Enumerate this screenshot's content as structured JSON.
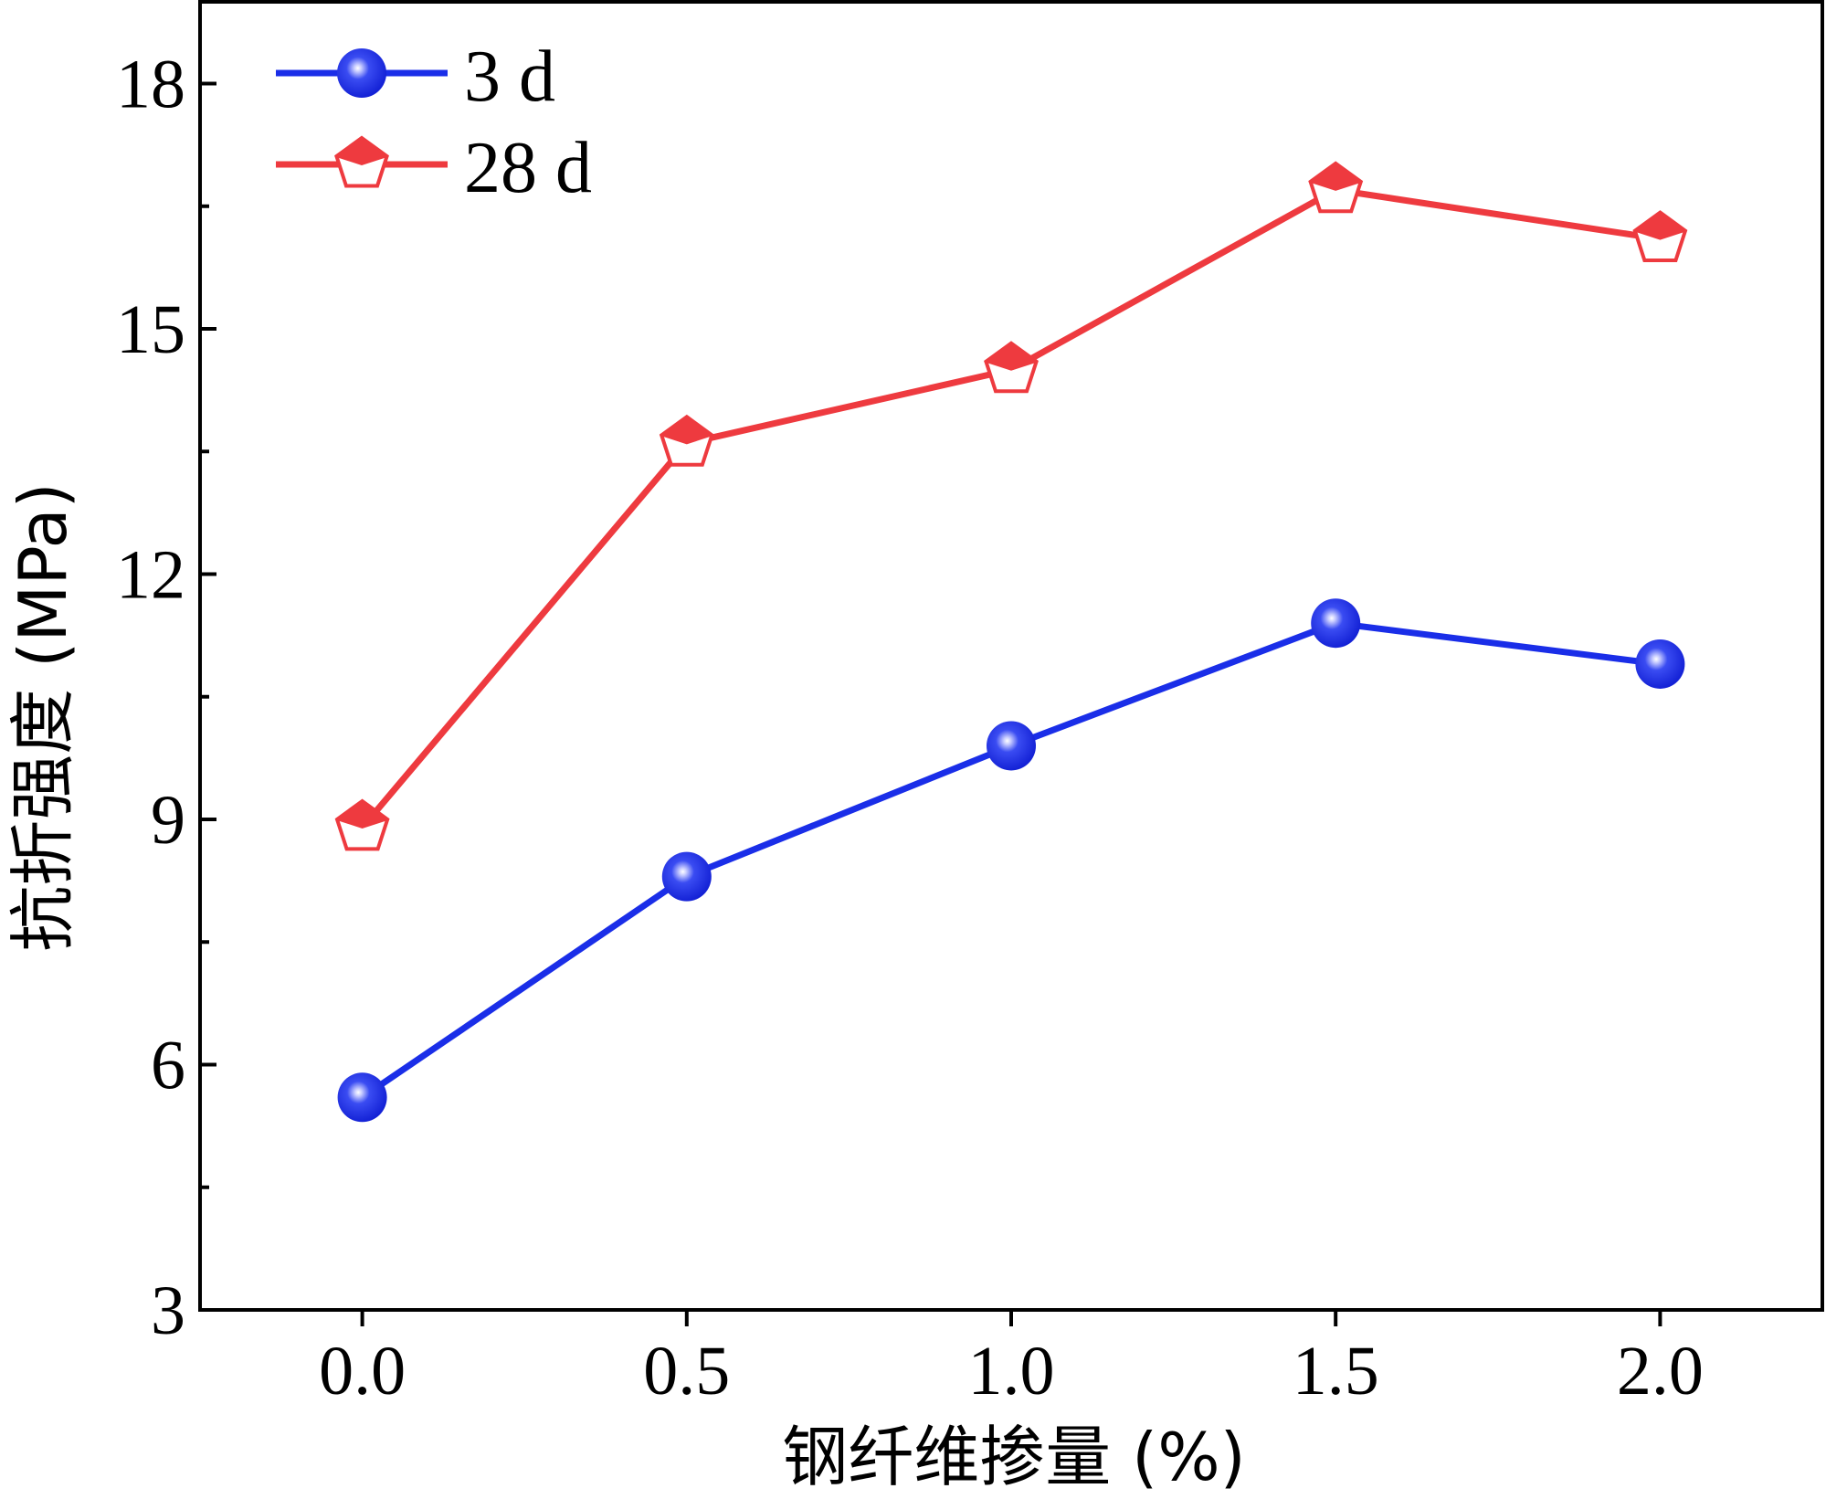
{
  "chart_data": {
    "type": "line",
    "title": "",
    "xlabel": "钢纤维掺量 (%)",
    "ylabel": "抗折强度 (MPa)",
    "xlim": [
      -0.25,
      2.25
    ],
    "ylim": [
      3,
      19
    ],
    "x_ticks": [
      0.0,
      0.5,
      1.0,
      1.5,
      2.0
    ],
    "x_tick_labels": [
      "0.0",
      "0.5",
      "1.0",
      "1.5",
      "2.0"
    ],
    "y_ticks": [
      3,
      6,
      9,
      12,
      15,
      18
    ],
    "y_tick_labels": [
      "3",
      "6",
      "9",
      "12",
      "15",
      "18"
    ],
    "y_minor_ticks": [
      4.5,
      7.5,
      10.5,
      13.5,
      16.5
    ],
    "legend_position": "top-left",
    "grid": false,
    "x": [
      0.0,
      0.5,
      1.0,
      1.5,
      2.0
    ],
    "series": [
      {
        "name": "3 d",
        "color": "#1a2ee8",
        "marker": "sphere",
        "values": [
          5.6,
          8.3,
          9.9,
          11.4,
          10.9
        ]
      },
      {
        "name": "28 d",
        "color": "#ee3a3f",
        "marker": "pentagon",
        "values": [
          8.9,
          13.6,
          14.5,
          16.7,
          16.1
        ]
      }
    ]
  }
}
